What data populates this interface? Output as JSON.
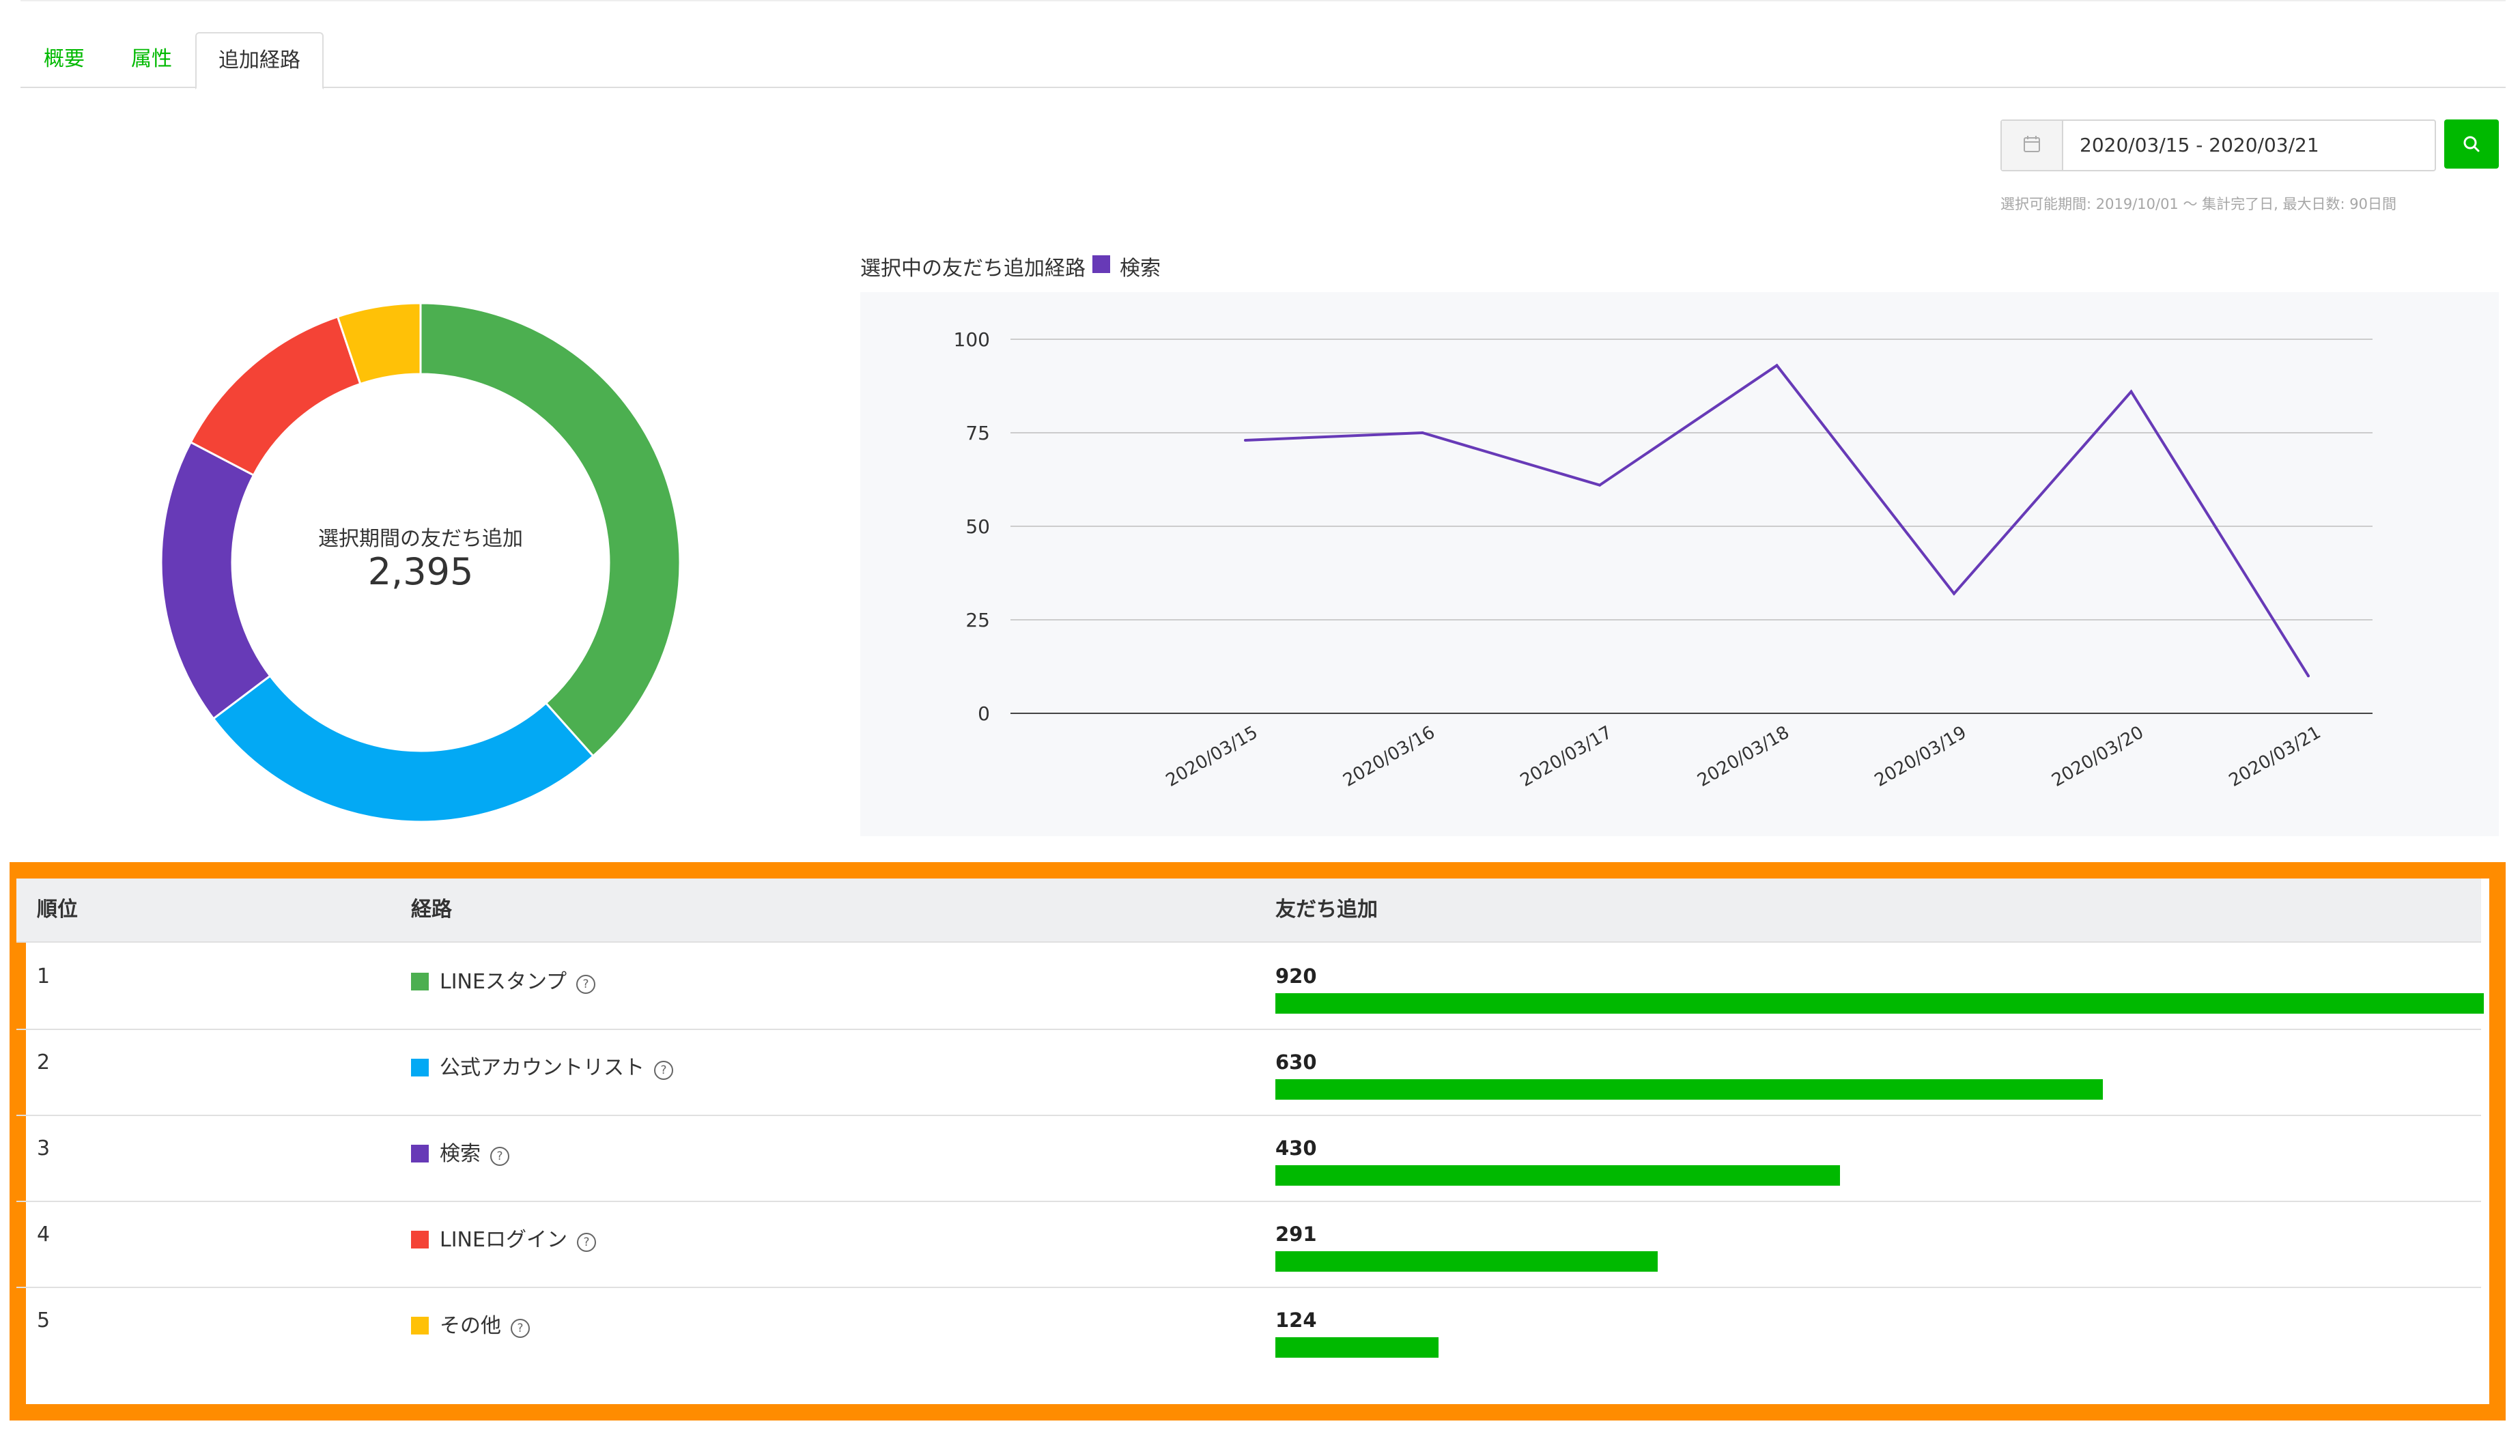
{
  "tabs": [
    {
      "label": "概要",
      "active": false
    },
    {
      "label": "属性",
      "active": false
    },
    {
      "label": "追加経路",
      "active": true
    }
  ],
  "date_range": {
    "value": "2020/03/15 - 2020/03/21",
    "hint": "選択可能期間: 2019/10/01 〜 集計完了日, 最大日数: 90日間",
    "calendar_icon": "calendar-icon",
    "search_icon": "search-icon"
  },
  "colors": {
    "accent": "#00b900",
    "line_stamp": "#4caf50",
    "account_list": "#03a9f4",
    "search": "#673ab7",
    "line_login": "#f44336",
    "other": "#ffc107",
    "highlight": "#ff8c00"
  },
  "donut": {
    "label": "選択期間の友だち追加",
    "total": "2,395",
    "segments": [
      {
        "name": "LINEスタンプ",
        "value": 920,
        "color": "#4caf50"
      },
      {
        "name": "公式アカウントリスト",
        "value": 630,
        "color": "#03a9f4"
      },
      {
        "name": "検索",
        "value": 430,
        "color": "#673ab7"
      },
      {
        "name": "LINEログイン",
        "value": 291,
        "color": "#f44336"
      },
      {
        "name": "その他",
        "value": 124,
        "color": "#ffc107"
      }
    ]
  },
  "line_chart": {
    "title": "選択中の友だち追加経路",
    "legend": "検索"
  },
  "chart_data": [
    {
      "type": "pie",
      "title": "選択期間の友だち追加",
      "categories": [
        "LINEスタンプ",
        "公式アカウントリスト",
        "検索",
        "LINEログイン",
        "その他"
      ],
      "values": [
        920,
        630,
        430,
        291,
        124
      ]
    },
    {
      "type": "line",
      "title": "選択中の友だち追加経路",
      "x": [
        "2020/03/15",
        "2020/03/16",
        "2020/03/17",
        "2020/03/18",
        "2020/03/19",
        "2020/03/20",
        "2020/03/21"
      ],
      "series": [
        {
          "name": "検索",
          "values": [
            73,
            75,
            61,
            93,
            32,
            86,
            10
          ],
          "color": "#673ab7"
        }
      ],
      "yticks": [
        0,
        25,
        50,
        75,
        100
      ],
      "ylim": [
        0,
        100
      ],
      "grid": true
    }
  ],
  "table": {
    "headers": {
      "rank": "順位",
      "route": "経路",
      "count": "友だち追加"
    },
    "rows": [
      {
        "rank": "1",
        "route": "LINEスタンプ",
        "count": "920",
        "value": 920,
        "color": "#4caf50"
      },
      {
        "rank": "2",
        "route": "公式アカウントリスト",
        "count": "630",
        "value": 630,
        "color": "#03a9f4"
      },
      {
        "rank": "3",
        "route": "検索",
        "count": "430",
        "value": 430,
        "color": "#673ab7"
      },
      {
        "rank": "4",
        "route": "LINEログイン",
        "count": "291",
        "value": 291,
        "color": "#f44336"
      },
      {
        "rank": "5",
        "route": "その他",
        "count": "124",
        "value": 124,
        "color": "#ffc107"
      }
    ],
    "max_value": 920
  }
}
